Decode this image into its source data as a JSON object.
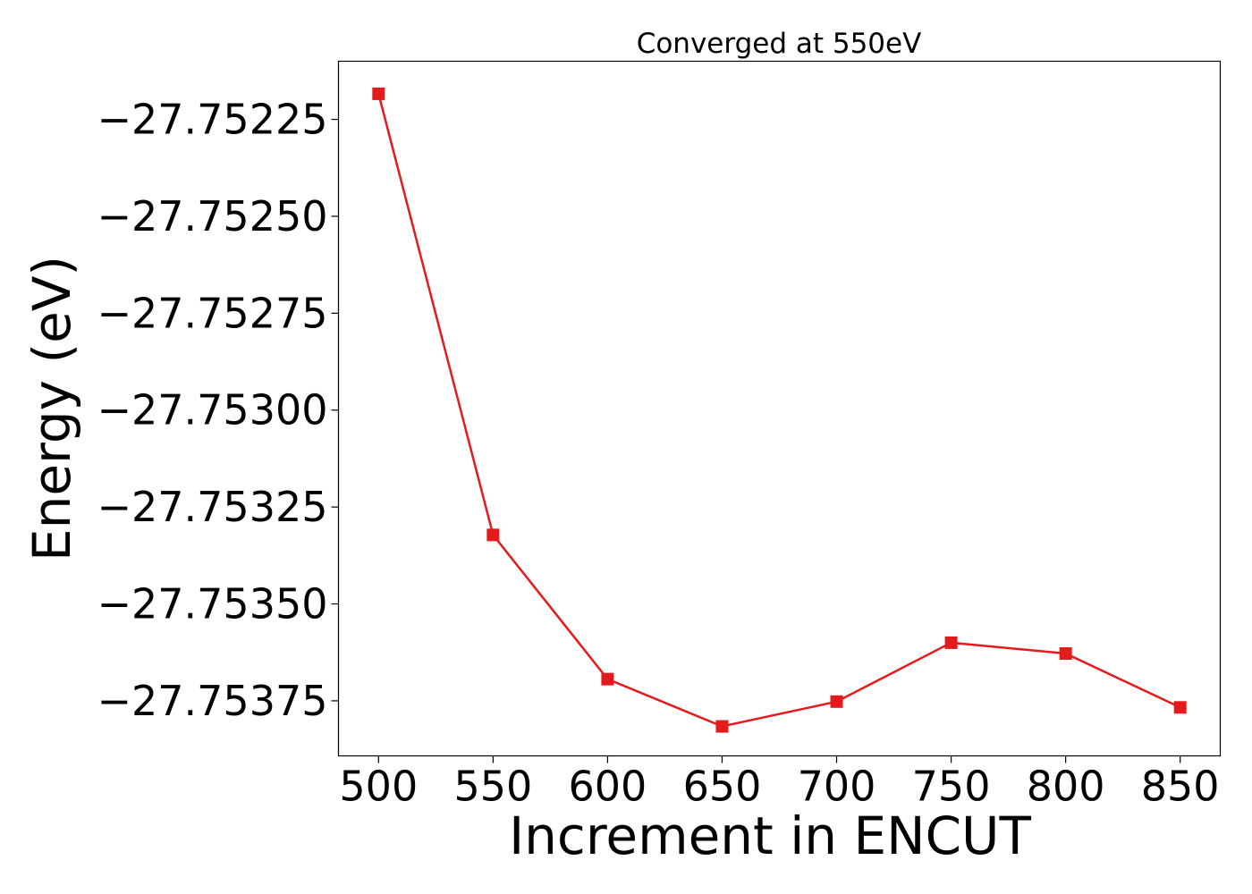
{
  "chart_data": {
    "type": "line",
    "title": "Converged at 550eV",
    "xlabel": "Increment in ENCUT",
    "ylabel": "Energy (eV)",
    "x": [
      500,
      550,
      600,
      650,
      700,
      750,
      800,
      850
    ],
    "series": [
      {
        "values": [
          -27.752184,
          -27.753322,
          -27.753694,
          -27.753816,
          -27.753752,
          -27.7536,
          -27.753628,
          -27.753767
        ],
        "color": "#e41a1c",
        "marker": "square"
      }
    ],
    "xticks": [
      500,
      550,
      600,
      650,
      700,
      750,
      800,
      850
    ],
    "xtick_labels": [
      "500",
      "550",
      "600",
      "650",
      "700",
      "750",
      "800",
      "850"
    ],
    "yticks": [
      -27.75225,
      -27.7525,
      -27.75275,
      -27.753,
      -27.75325,
      -27.7535,
      -27.75375
    ],
    "ytick_labels": [
      "−27.75225",
      "−27.75250",
      "−27.75275",
      "−27.75300",
      "−27.75325",
      "−27.75350",
      "−27.75375"
    ],
    "xlim": [
      482.5,
      867.5
    ],
    "ylim": [
      -27.753892,
      -27.7521
    ],
    "grid": false,
    "legend": false
  }
}
